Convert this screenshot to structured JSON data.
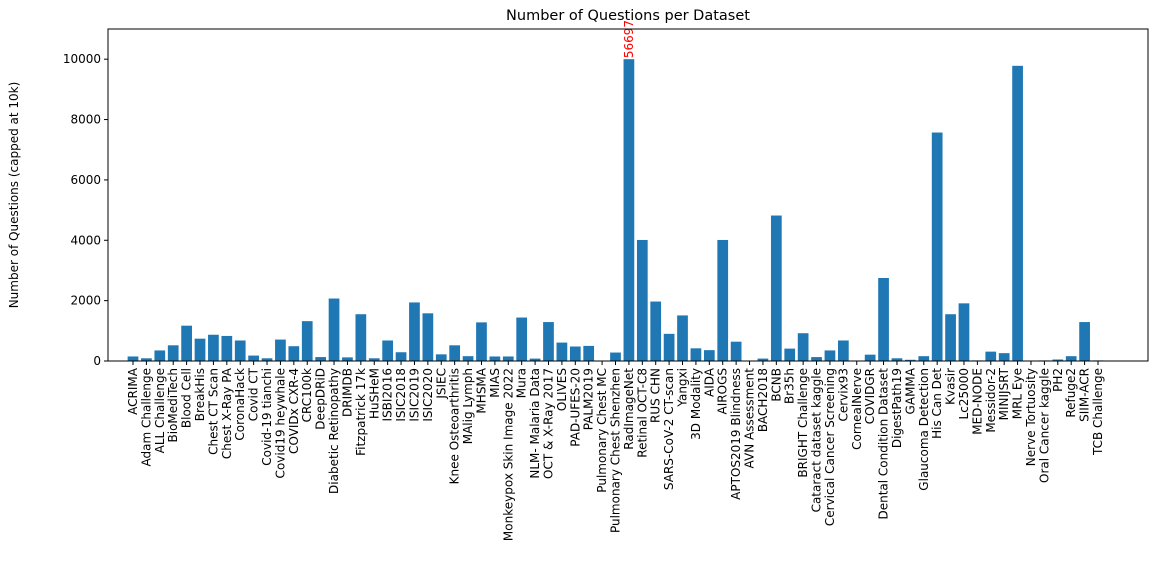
{
  "chart_data": {
    "type": "bar",
    "title": "Number of Questions per Dataset",
    "xlabel": "",
    "ylabel": "Number of Questions (capped at 10k)",
    "ylim": [
      0,
      11000
    ],
    "yticks": [
      0,
      2000,
      4000,
      6000,
      8000,
      10000
    ],
    "bar_color": "#1f77b4",
    "annotation_color": "#ff0000",
    "annotations": [
      {
        "category": "RadImageNet",
        "text": "56697"
      }
    ],
    "categories": [
      "ACRIMA",
      "Adam Challenge",
      "ALL Challenge",
      "BioMediTech",
      "Blood Cell",
      "BreakHis",
      "Chest CT Scan",
      "Chest X-Ray PA",
      "CoronaHack",
      "Covid CT",
      "Covid-19 tianchi",
      "Covid19 heywhale",
      "COVIDx CXR-4",
      "CRC100k",
      "DeepDRiD",
      "Diabetic Retinopathy",
      "DRIMDB",
      "Fitzpatrick 17k",
      "HuSHeM",
      "ISBI2016",
      "ISIC2018",
      "ISIC2019",
      "ISIC2020",
      "JSIEC",
      "Knee Osteoarthritis",
      "MAlig Lymph",
      "MHSMA",
      "MIAS",
      "Monkeypox Skin Image 2022",
      "Mura",
      "NLM- Malaria Data",
      "OCT & X-Ray 2017",
      "OLIVES",
      "PAD-UFES-20",
      "PALM2019",
      "Pulmonary Chest MC",
      "Pulmonary Chest Shenzhen",
      "RadImageNet",
      "Retinal OCT-C8",
      "RUS CHN",
      "SARS-CoV-2 CT-scan",
      "Yangxi",
      "3D Modality",
      "AIDA",
      "AIROGS",
      "APTOS2019 Blindness",
      "AVN Assessment",
      "BACH2018",
      "BCNB",
      "Br35h",
      "BRIGHT Challenge",
      "Cataract dataset kaggle",
      "Cervical Cancer Screening",
      "Cervix93",
      "CornealNerve",
      "COVIDGR",
      "Dental Condition Dataset",
      "DigestPath19",
      "GAMMA",
      "Glaucoma Detection",
      "His Can Det",
      "Kvasir",
      "Lc25000",
      "MED-NODE",
      "Messidor-2",
      "MINIJSRT",
      "MRL Eye",
      "Nerve Tortuosity",
      "Oral Cancer kaggle",
      "PH2",
      "Refuge2",
      "SIIM-ACR",
      "TCB Challenge"
    ],
    "values": [
      150,
      90,
      350,
      520,
      1170,
      740,
      870,
      830,
      680,
      180,
      90,
      710,
      490,
      1320,
      130,
      2070,
      120,
      1550,
      90,
      680,
      290,
      1940,
      1580,
      220,
      520,
      160,
      1280,
      150,
      150,
      1440,
      80,
      1290,
      610,
      480,
      500,
      10,
      280,
      10000,
      4010,
      1970,
      900,
      1510,
      420,
      360,
      4010,
      640,
      10,
      80,
      4820,
      410,
      920,
      130,
      350,
      680,
      10,
      210,
      2750,
      90,
      40,
      160,
      7570,
      1550,
      1910,
      20,
      310,
      260,
      9780,
      10,
      20,
      50,
      160,
      1290,
      20
    ]
  }
}
